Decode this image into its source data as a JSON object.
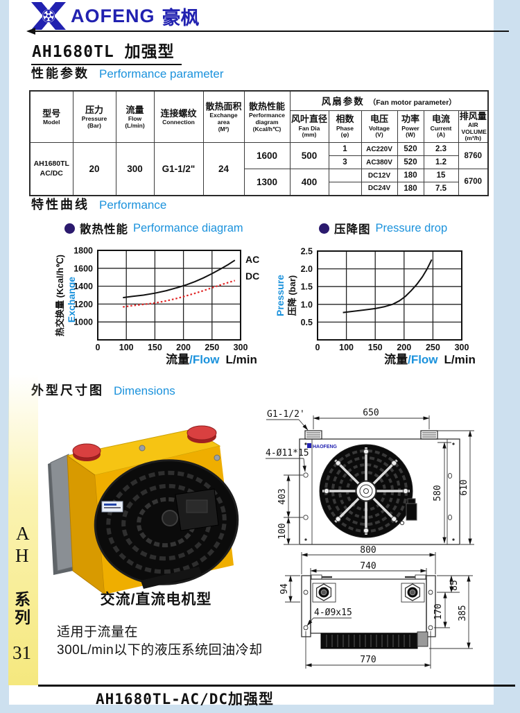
{
  "brand": {
    "logo_text": "AOFENG",
    "logo_cn": "豪枫",
    "drawing_logo": "HAOFENG"
  },
  "header": {
    "title": "AH1680TL 加强型"
  },
  "sections": {
    "perf": {
      "cn": "性能参数",
      "en": "Performance  parameter"
    },
    "curves": {
      "cn": "特性曲线",
      "en": "Performance"
    },
    "dims": {
      "cn": "外型尺寸图",
      "en": "Dimensions"
    }
  },
  "colors": {
    "accent_blue": "#1b92dc",
    "brand_blue": "#2121b0",
    "bullet_indigo": "#2b1a6e",
    "curve_red": "#e02424",
    "cooler_yellow": "#efae00"
  },
  "table": {
    "group_header": {
      "cn": "风扇参数",
      "en": "（Fan motor parameter）"
    },
    "cols": [
      {
        "cn": "型号",
        "en": "Model",
        "unit": ""
      },
      {
        "cn": "压力",
        "en": "Pressure",
        "unit": "(Bar)"
      },
      {
        "cn": "流量",
        "en": "Flow",
        "unit": "(L/min)"
      },
      {
        "cn": "连接螺纹",
        "en": "Connection",
        "unit": ""
      },
      {
        "cn": "散热面积",
        "en": "Exchange area",
        "unit": "(M²)"
      },
      {
        "cn": "散热性能",
        "en": "Performance diagram",
        "unit": "(Kcal/h℃)"
      }
    ],
    "fan_cols": [
      {
        "cn": "风叶直径",
        "en": "Fan Dia",
        "unit": "(mm)"
      },
      {
        "cn": "相数",
        "en": "Phase",
        "unit": "(φ)"
      },
      {
        "cn": "电压",
        "en": "Voltage",
        "unit": "(V)"
      },
      {
        "cn": "功率",
        "en": "Power",
        "unit": "(W)"
      },
      {
        "cn": "电流",
        "en": "Current",
        "unit": "(A)"
      },
      {
        "cn": "排风量",
        "en": "AIR VOLUME",
        "unit": "(m³/h)"
      }
    ],
    "row": {
      "model1": "AH1680TL",
      "model2": "AC/DC",
      "pressure": "20",
      "flow": "300",
      "connection": "G1-1/2\"",
      "area": "24"
    },
    "perf_rows": [
      {
        "kcal": "1600",
        "fan_dia": "500",
        "air": "8760"
      },
      {
        "kcal": "1300",
        "fan_dia": "400",
        "air": "6700"
      }
    ],
    "fan_rows": [
      {
        "phase": "1",
        "voltage": "AC220V",
        "power": "520",
        "current": "2.3"
      },
      {
        "phase": "3",
        "voltage": "AC380V",
        "power": "520",
        "current": "1.2"
      },
      {
        "phase": "",
        "voltage": "DC12V",
        "power": "180",
        "current": "15"
      },
      {
        "phase": "",
        "voltage": "DC24V",
        "power": "180",
        "current": "7.5"
      }
    ]
  },
  "chart_data": [
    {
      "type": "line",
      "legend": {
        "cn": "散热性能",
        "en": "Performance diagram"
      },
      "xlabel": {
        "cn": "流量",
        "en": "/Flow",
        "unit": "L/min"
      },
      "ylabel": {
        "cn": "热交换量 (Kcal/h℃)",
        "en": "Exchange"
      },
      "x_ticks": [
        0,
        100,
        150,
        200,
        250,
        300
      ],
      "x_tick_labels": [
        "0",
        "100",
        "150",
        "200",
        "250",
        "300"
      ],
      "x_axis_note": "ticks evenly spaced (non-linear scale)",
      "y_ticks": [
        1800,
        1600,
        1400,
        1200,
        1000
      ],
      "y_tick_labels": [
        "1800",
        "1600",
        "1400",
        "1200",
        "1000"
      ],
      "ylim": [
        800,
        1800
      ],
      "grid": true,
      "series": [
        {
          "name": "AC",
          "color": "#111111",
          "style": "solid",
          "label_y": 1700,
          "points": [
            [
              88,
              1272
            ],
            [
              110,
              1285
            ],
            [
              130,
              1300
            ],
            [
              150,
              1322
            ],
            [
              170,
              1350
            ],
            [
              190,
              1385
            ],
            [
              205,
              1415
            ],
            [
              220,
              1450
            ],
            [
              235,
              1492
            ],
            [
              250,
              1540
            ],
            [
              265,
              1592
            ],
            [
              278,
              1640
            ],
            [
              290,
              1690
            ]
          ]
        },
        {
          "name": "DC",
          "color": "#e02424",
          "style": "dotted",
          "label_y": 1512,
          "points": [
            [
              88,
              1168
            ],
            [
              110,
              1182
            ],
            [
              130,
              1196
            ],
            [
              150,
              1212
            ],
            [
              170,
              1236
            ],
            [
              190,
              1266
            ],
            [
              205,
              1292
            ],
            [
              220,
              1320
            ],
            [
              235,
              1350
            ],
            [
              250,
              1382
            ],
            [
              265,
              1414
            ],
            [
              278,
              1440
            ],
            [
              290,
              1462
            ]
          ]
        }
      ]
    },
    {
      "type": "line",
      "legend": {
        "cn": "压降图",
        "en": "Pressure drop"
      },
      "xlabel": {
        "cn": "流量",
        "en": "/Flow",
        "unit": "L/min"
      },
      "ylabel": {
        "cn": "压降 (bar)",
        "en": "Pressure"
      },
      "x_ticks": [
        0,
        100,
        150,
        200,
        250,
        300
      ],
      "x_tick_labels": [
        "0",
        "100",
        "150",
        "200",
        "250",
        "300"
      ],
      "x_axis_note": "ticks evenly spaced (non-linear scale)",
      "y_ticks": [
        2.5,
        2.0,
        1.5,
        1.0,
        0.5
      ],
      "y_tick_labels": [
        "2.5",
        "2.0",
        "1.5",
        "1.0",
        "0.5"
      ],
      "ylim": [
        0,
        2.5
      ],
      "grid": true,
      "series": [
        {
          "name": "",
          "color": "#111111",
          "style": "solid",
          "points": [
            [
              88,
              0.77
            ],
            [
              110,
              0.8
            ],
            [
              130,
              0.84
            ],
            [
              150,
              0.88
            ],
            [
              165,
              0.93
            ],
            [
              180,
              1.0
            ],
            [
              192,
              1.1
            ],
            [
              202,
              1.22
            ],
            [
              212,
              1.38
            ],
            [
              222,
              1.56
            ],
            [
              232,
              1.78
            ],
            [
              240,
              2.0
            ],
            [
              248,
              2.26
            ]
          ]
        }
      ]
    }
  ],
  "photo": {
    "caption": "交流/直流电机型",
    "note1": "适用于流量在",
    "note2": "300L/min以下的液压系统回油冷却"
  },
  "front_drawing": {
    "thread": "G1-1/2'",
    "holes": "4-Ø11*15",
    "d650": "650",
    "d403": "403",
    "d100": "100",
    "d580": "580",
    "d610": "610"
  },
  "top_drawing": {
    "d800": "800",
    "d740": "740",
    "d94": "94",
    "d85": "85",
    "d170": "170",
    "d385": "385",
    "d770": "770",
    "holes": "4-Ø9x15"
  },
  "sidebar": {
    "l1": "A",
    "l2": "H",
    "l3": "系",
    "l4": "列",
    "page_no": "31"
  },
  "footer": {
    "model_label": "AH1680TL-AC/DC加强型"
  }
}
